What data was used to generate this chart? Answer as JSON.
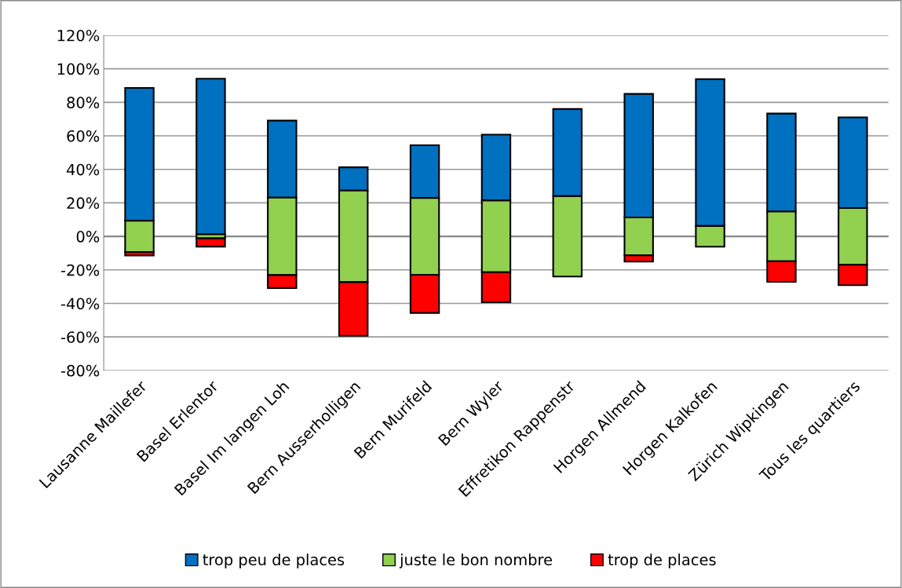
{
  "chart_data": {
    "type": "bar",
    "categories": [
      "Lausanne Maillefer",
      "Basel Erlentor",
      "Basel Im langen Loh",
      "Bern Ausserholligen",
      "Bern Murifeld",
      "Bern Wyler",
      "Effretikon Rappenstr",
      "Horgen Allmend",
      "Horgen Kalkofen",
      "Zürich Wipkingen",
      "Tous les quartiers"
    ],
    "series": [
      {
        "name": "trop peu de places",
        "color": "#0070c0",
        "base": [
          9.3,
          1.2,
          23.1,
          27.3,
          22.9,
          21.4,
          24.0,
          11.3,
          6.2,
          14.8,
          16.9
        ],
        "values": [
          79.3,
          92.9,
          46.0,
          13.9,
          31.5,
          39.3,
          52.0,
          73.7,
          87.6,
          58.5,
          54.1
        ]
      },
      {
        "name": "juste le bon nombre",
        "color": "#92d050",
        "base": [
          -9.3,
          -1.2,
          -23.1,
          -27.3,
          -22.9,
          -21.4,
          -24.0,
          -11.3,
          -6.2,
          -14.8,
          -16.9
        ],
        "values": [
          18.6,
          2.4,
          46.2,
          54.6,
          45.8,
          42.8,
          48.0,
          22.6,
          12.4,
          29.6,
          33.8
        ]
      },
      {
        "name": "trop de places",
        "color": "#ff0000",
        "base": [
          -11.4,
          -6.1,
          -30.8,
          -59.3,
          -45.7,
          -39.3,
          null,
          -15.1,
          null,
          -27.1,
          -29.1
        ],
        "values": [
          2.1,
          4.9,
          7.7,
          32.0,
          22.8,
          17.9,
          null,
          3.8,
          null,
          12.3,
          12.2
        ]
      }
    ],
    "ylim": [
      -80,
      120
    ],
    "yticks": [
      {
        "value": -80,
        "label": "-80%"
      },
      {
        "value": -60,
        "label": "-60%"
      },
      {
        "value": -40,
        "label": "-40%"
      },
      {
        "value": -20,
        "label": "-20%"
      },
      {
        "value": 0,
        "label": "0%"
      },
      {
        "value": 20,
        "label": "20%"
      },
      {
        "value": 40,
        "label": "40%"
      },
      {
        "value": 60,
        "label": "60%"
      },
      {
        "value": 80,
        "label": "80%"
      },
      {
        "value": 100,
        "label": "100%"
      },
      {
        "value": 120,
        "label": "120%"
      }
    ],
    "grid": "y",
    "legend": "bottom"
  }
}
